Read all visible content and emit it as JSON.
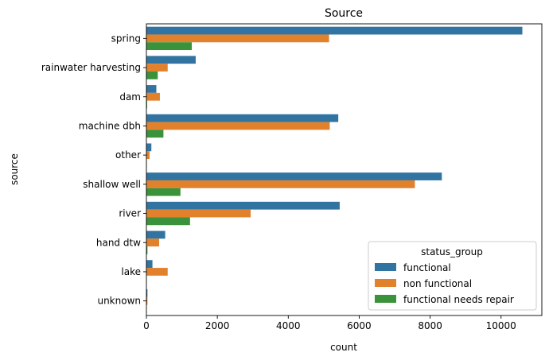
{
  "chart_data": {
    "type": "bar",
    "orientation": "horizontal",
    "title": "Source",
    "xlabel": "count",
    "ylabel": "source",
    "xlim": [
      0,
      11150
    ],
    "xticks": [
      0,
      2000,
      4000,
      6000,
      8000,
      10000
    ],
    "xtick_labels": [
      "0",
      "2000",
      "4000",
      "6000",
      "8000",
      "10000"
    ],
    "categories": [
      "spring",
      "rainwater harvesting",
      "dam",
      "machine dbh",
      "other",
      "shallow well",
      "river",
      "hand dtw",
      "lake",
      "unknown"
    ],
    "series": [
      {
        "name": "functional",
        "color": "#3274a1",
        "values": [
          10600,
          1390,
          280,
          5410,
          140,
          8330,
          5450,
          530,
          170,
          30
        ]
      },
      {
        "name": "non functional",
        "color": "#e1812c",
        "values": [
          5150,
          600,
          380,
          5170,
          90,
          7570,
          2940,
          360,
          600,
          30
        ]
      },
      {
        "name": "functional needs repair",
        "color": "#3a923a",
        "values": [
          1280,
          320,
          20,
          480,
          10,
          960,
          1230,
          30,
          10,
          0
        ]
      }
    ],
    "legend": {
      "title": "status_group",
      "placement": "lower-right"
    },
    "grid": false
  }
}
